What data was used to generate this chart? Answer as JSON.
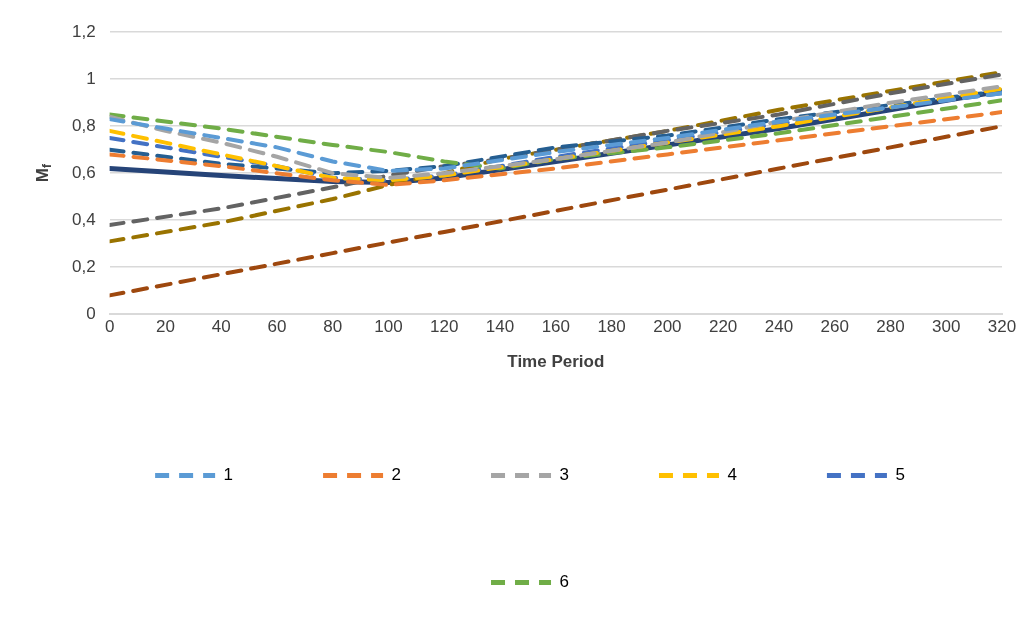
{
  "chart_data": {
    "type": "line",
    "xlabel": "Time Period",
    "ylabel": "M$_{f}$",
    "xlim": [
      0,
      320
    ],
    "xticks": [
      0,
      20,
      40,
      60,
      80,
      100,
      120,
      140,
      160,
      180,
      200,
      220,
      240,
      260,
      280,
      300,
      320
    ],
    "ylim": [
      0,
      1.2
    ],
    "yticks": [
      {
        "value": 0,
        "label": "0"
      },
      {
        "value": 0.2,
        "label": "0,2"
      },
      {
        "value": 0.4,
        "label": "0,4"
      },
      {
        "value": 0.6,
        "label": "0,6"
      },
      {
        "value": 0.8,
        "label": "0,8"
      },
      {
        "value": 1,
        "label": "1"
      },
      {
        "value": 1.2,
        "label": "1,2"
      }
    ],
    "grid": "y",
    "legend": "bottom",
    "line_style": "dashed",
    "marker": "none",
    "series": [
      {
        "name": "1",
        "color": "#5b9bd5",
        "x": [
          0,
          20,
          40,
          60,
          80,
          100,
          120,
          160,
          200,
          240,
          280,
          320
        ],
        "values": [
          0.83,
          0.79,
          0.75,
          0.71,
          0.65,
          0.61,
          0.62,
          0.69,
          0.75,
          0.82,
          0.88,
          0.94
        ]
      },
      {
        "name": "2",
        "color": "#ed7d31",
        "x": [
          0,
          40,
          80,
          100,
          120,
          160,
          200,
          240,
          280,
          320
        ],
        "values": [
          0.68,
          0.63,
          0.57,
          0.55,
          0.57,
          0.62,
          0.68,
          0.74,
          0.8,
          0.86
        ]
      },
      {
        "name": "3",
        "color": "#a5a5a5",
        "x": [
          0,
          20,
          40,
          60,
          80,
          100,
          120,
          160,
          200,
          240,
          280,
          320
        ],
        "values": [
          0.84,
          0.78,
          0.73,
          0.67,
          0.6,
          0.58,
          0.6,
          0.66,
          0.73,
          0.82,
          0.9,
          0.97
        ]
      },
      {
        "name": "4",
        "color": "#ffc000",
        "x": [
          0,
          20,
          40,
          60,
          80,
          100,
          120,
          160,
          200,
          240,
          280,
          320
        ],
        "values": [
          0.78,
          0.73,
          0.68,
          0.63,
          0.58,
          0.57,
          0.59,
          0.66,
          0.73,
          0.8,
          0.88,
          0.96
        ]
      },
      {
        "name": "5",
        "color": "#4472c4",
        "x": [
          0,
          20,
          40,
          60,
          80,
          100,
          120,
          160,
          200,
          240,
          280,
          320
        ],
        "values": [
          0.75,
          0.71,
          0.67,
          0.63,
          0.58,
          0.57,
          0.59,
          0.67,
          0.74,
          0.81,
          0.88,
          0.94
        ]
      },
      {
        "name": "6",
        "color": "#70ad47",
        "x": [
          0,
          40,
          80,
          100,
          120,
          140,
          160,
          200,
          240,
          280,
          320
        ],
        "values": [
          0.85,
          0.79,
          0.72,
          0.69,
          0.65,
          0.62,
          0.66,
          0.71,
          0.77,
          0.84,
          0.91
        ]
      },
      {
        "color": "#255e91",
        "x": [
          0,
          20,
          40,
          60,
          80,
          100,
          120,
          160,
          200,
          240,
          280,
          320
        ],
        "values": [
          0.7,
          0.67,
          0.64,
          0.62,
          0.6,
          0.61,
          0.63,
          0.71,
          0.76,
          0.83,
          0.89,
          0.95
        ]
      },
      {
        "color": "#636363",
        "x": [
          0,
          40,
          80,
          100,
          120,
          140,
          160,
          200,
          240,
          280,
          320
        ],
        "values": [
          0.38,
          0.45,
          0.54,
          0.59,
          0.63,
          0.66,
          0.7,
          0.78,
          0.85,
          0.94,
          1.02
        ]
      },
      {
        "color": "#997300",
        "x": [
          0,
          40,
          80,
          100,
          120,
          140,
          160,
          200,
          240,
          280,
          320
        ],
        "values": [
          0.31,
          0.39,
          0.49,
          0.55,
          0.6,
          0.66,
          0.7,
          0.78,
          0.87,
          0.95,
          1.03
        ]
      },
      {
        "color": "#9e480e",
        "x": [
          0,
          40,
          80,
          120,
          160,
          200,
          240,
          280,
          320
        ],
        "values": [
          0.08,
          0.17,
          0.26,
          0.35,
          0.44,
          0.53,
          0.62,
          0.71,
          0.8
        ]
      },
      {
        "color": "#264478",
        "line_style": "solid",
        "x": [
          0,
          40,
          80,
          100,
          120,
          160,
          200,
          240,
          280,
          320
        ],
        "values": [
          0.62,
          0.59,
          0.565,
          0.56,
          0.58,
          0.65,
          0.72,
          0.79,
          0.87,
          0.95
        ]
      }
    ]
  }
}
